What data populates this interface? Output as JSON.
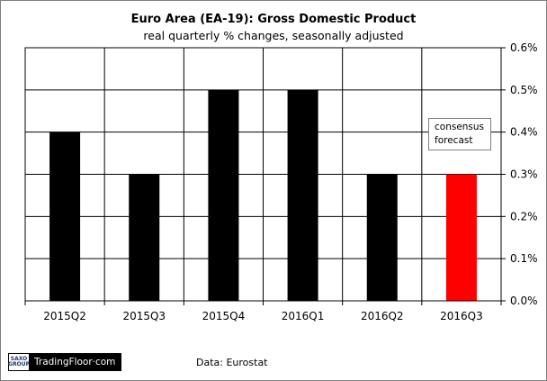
{
  "chart_data": {
    "type": "bar",
    "title": "Euro Area (EA-19): Gross Domestic Product",
    "subtitle": "real quarterly % changes, seasonally adjusted",
    "categories": [
      "2015Q2",
      "2015Q3",
      "2015Q4",
      "2016Q1",
      "2016Q2",
      "2016Q3"
    ],
    "values": [
      0.4,
      0.3,
      0.5,
      0.5,
      0.3,
      0.3
    ],
    "bar_colors": [
      "#000000",
      "#000000",
      "#000000",
      "#000000",
      "#000000",
      "#ff0000"
    ],
    "ylim": [
      0,
      0.6
    ],
    "yticks": [
      0.0,
      0.1,
      0.2,
      0.3,
      0.4,
      0.5,
      0.6
    ],
    "ytick_labels": [
      "0.0%",
      "0.1%",
      "0.2%",
      "0.3%",
      "0.4%",
      "0.5%",
      "0.6%"
    ],
    "y_axis_side": "right",
    "grid": true,
    "annotation": {
      "line1": "consensus",
      "line2": "forecast"
    }
  },
  "footer": {
    "logo_top": "SAXO",
    "logo_bottom": "GROUP",
    "logo_brand": "TradingFloor·com",
    "source": "Data: Eurostat"
  }
}
